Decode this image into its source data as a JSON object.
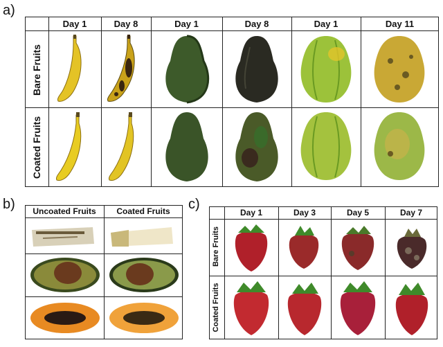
{
  "panels": {
    "a": {
      "label": "a)",
      "columns": [
        "Day 1",
        "Day 8",
        "Day 1",
        "Day 8",
        "Day 1",
        "Day 11"
      ],
      "rows": [
        "Bare Fruits",
        "Coated Fruits"
      ]
    },
    "b": {
      "label": "b)",
      "columns": [
        "Uncoated Fruits",
        "Coated Fruits"
      ]
    },
    "c": {
      "label": "c)",
      "columns": [
        "Day 1",
        "Day 3",
        "Day 5",
        "Day 7"
      ],
      "rows": [
        "Bare Fruits",
        "Coated Fruits"
      ]
    }
  },
  "colors": {
    "banana": "#e8c925",
    "banana_ripe": "#c9a21a",
    "avocado": "#3d5a2a",
    "avocado_dark": "#2a2a1e",
    "papaya": "#9cc23a",
    "papaya_ripe": "#c9a835",
    "strawberry": "#b0202a",
    "strawberry_dark": "#5a2a2a",
    "leaf": "#3f8a2a"
  }
}
